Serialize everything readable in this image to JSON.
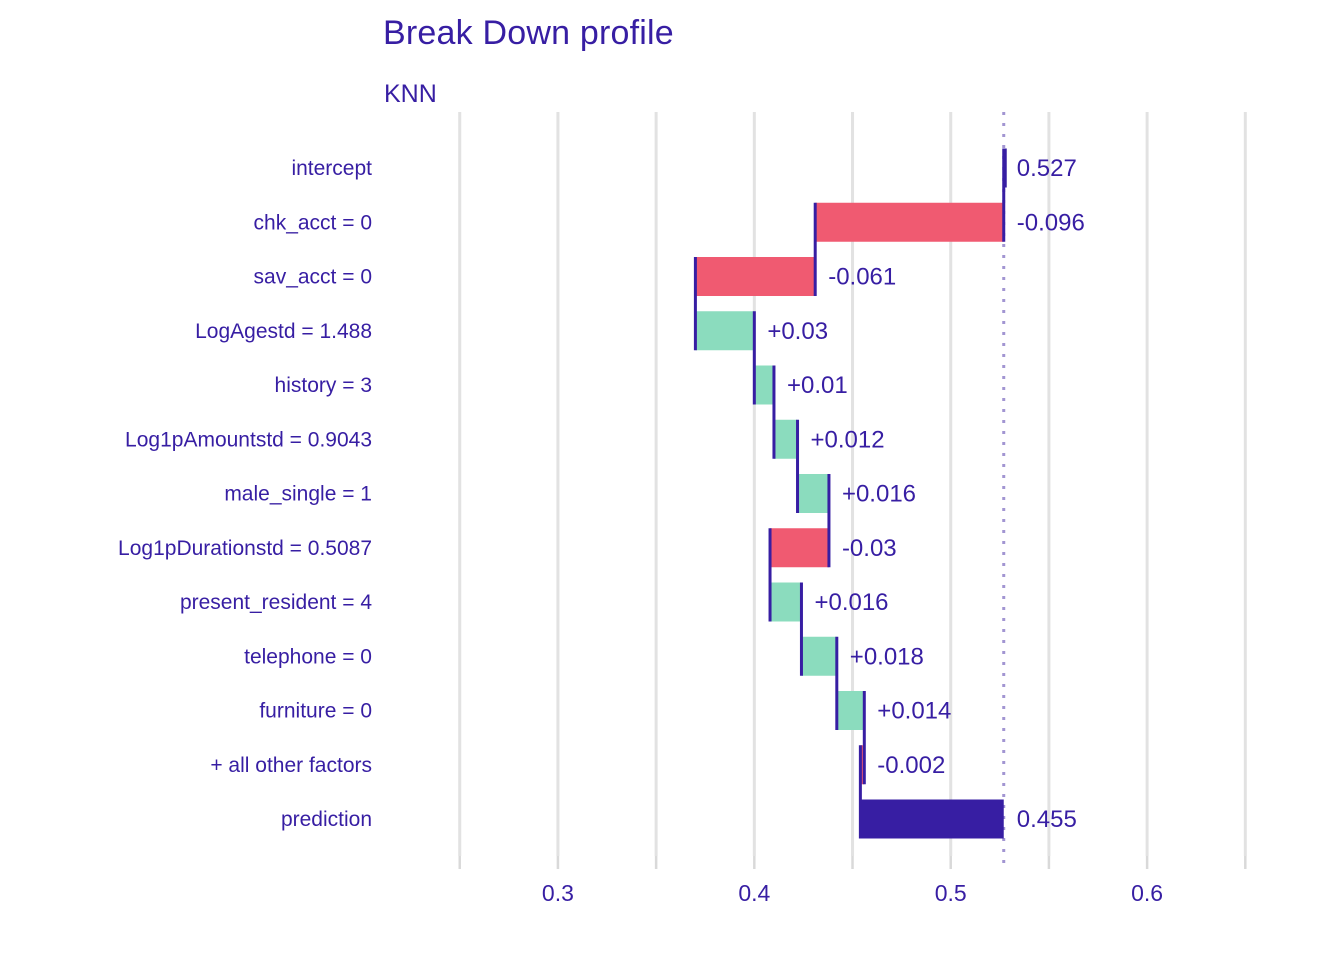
{
  "title": "Break Down profile",
  "subtitle": "KNN",
  "chart_data": {
    "type": "bar",
    "variant": "breakdown-waterfall",
    "orientation": "horizontal",
    "title": "Break Down profile",
    "facet_label": "KNN",
    "intercept": 0.527,
    "prediction": 0.455,
    "rows": [
      {
        "label": "intercept",
        "kind": "intercept",
        "value": 0.527,
        "value_label": "0.527"
      },
      {
        "label": "chk_acct = 0",
        "kind": "contribution",
        "value": -0.096,
        "value_label": "-0.096"
      },
      {
        "label": "sav_acct = 0",
        "kind": "contribution",
        "value": -0.061,
        "value_label": "-0.061"
      },
      {
        "label": "LogAgestd = 1.488",
        "kind": "contribution",
        "value": 0.03,
        "value_label": "+0.03"
      },
      {
        "label": "history = 3",
        "kind": "contribution",
        "value": 0.01,
        "value_label": "+0.01"
      },
      {
        "label": "Log1pAmountstd = 0.9043",
        "kind": "contribution",
        "value": 0.012,
        "value_label": "+0.012"
      },
      {
        "label": "male_single = 1",
        "kind": "contribution",
        "value": 0.016,
        "value_label": "+0.016"
      },
      {
        "label": "Log1pDurationstd = 0.5087",
        "kind": "contribution",
        "value": -0.03,
        "value_label": "-0.03"
      },
      {
        "label": "present_resident = 4",
        "kind": "contribution",
        "value": 0.016,
        "value_label": "+0.016"
      },
      {
        "label": "telephone = 0",
        "kind": "contribution",
        "value": 0.018,
        "value_label": "+0.018"
      },
      {
        "label": "furniture = 0",
        "kind": "contribution",
        "value": 0.014,
        "value_label": "+0.014"
      },
      {
        "label": "+ all other factors",
        "kind": "contribution",
        "value": -0.002,
        "value_label": "-0.002"
      },
      {
        "label": "prediction",
        "kind": "prediction",
        "value": 0.455,
        "value_label": "0.455"
      }
    ],
    "x_axis": {
      "range": [
        0.2425,
        0.6585
      ],
      "grid_min": 0.25,
      "grid_max": 0.65,
      "grid_step": 0.05,
      "ticks": [
        {
          "value": 0.3,
          "label": "0.3"
        },
        {
          "value": 0.4,
          "label": "0.4"
        },
        {
          "value": 0.5,
          "label": "0.5"
        },
        {
          "value": 0.6,
          "label": "0.6"
        }
      ]
    },
    "legend": "none",
    "grid": "vertical-only",
    "colors": {
      "positive": "#8bdcbe",
      "negative": "#f05a71",
      "neutral": "#371ea3",
      "text": "#371ea3",
      "grid": "#e2e2e2",
      "tick_mark": "#d9d9d9",
      "dotted_line": "#a295d2",
      "background": "#ffffff"
    }
  }
}
